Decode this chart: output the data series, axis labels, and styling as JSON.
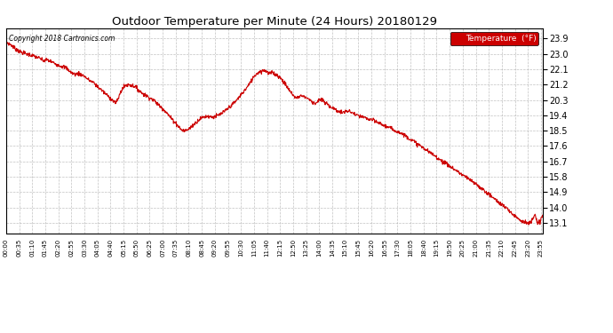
{
  "title": "Outdoor Temperature per Minute (24 Hours) 20180129",
  "copyright_text": "Copyright 2018 Cartronics.com",
  "legend_label": "Temperature  (°F)",
  "line_color": "#cc0000",
  "background_color": "#ffffff",
  "grid_color": "#999999",
  "legend_bg": "#cc0000",
  "legend_text_color": "#ffffff",
  "ylim_min": 12.5,
  "ylim_max": 24.5,
  "yticks": [
    13.1,
    14.0,
    14.9,
    15.8,
    16.7,
    17.6,
    18.5,
    19.4,
    20.3,
    21.2,
    22.1,
    23.0,
    23.9
  ],
  "x_tick_labels": [
    "00:00",
    "00:35",
    "01:10",
    "01:45",
    "02:20",
    "02:55",
    "03:30",
    "04:05",
    "04:40",
    "05:15",
    "05:50",
    "06:25",
    "07:00",
    "07:35",
    "08:10",
    "08:45",
    "09:20",
    "09:55",
    "10:30",
    "11:05",
    "11:40",
    "12:15",
    "12:50",
    "13:25",
    "14:00",
    "14:35",
    "15:10",
    "15:45",
    "16:20",
    "16:55",
    "17:30",
    "18:05",
    "18:40",
    "19:15",
    "19:50",
    "20:25",
    "21:00",
    "21:35",
    "22:10",
    "22:45",
    "23:20",
    "23:55"
  ],
  "keypoints": [
    [
      0,
      23.7
    ],
    [
      15,
      23.5
    ],
    [
      25,
      23.3
    ],
    [
      40,
      23.1
    ],
    [
      55,
      23.0
    ],
    [
      70,
      22.9
    ],
    [
      85,
      22.8
    ],
    [
      100,
      22.6
    ],
    [
      110,
      22.65
    ],
    [
      125,
      22.5
    ],
    [
      140,
      22.35
    ],
    [
      160,
      22.2
    ],
    [
      175,
      21.9
    ],
    [
      185,
      21.8
    ],
    [
      195,
      21.85
    ],
    [
      210,
      21.7
    ],
    [
      220,
      21.5
    ],
    [
      235,
      21.3
    ],
    [
      250,
      21.0
    ],
    [
      265,
      20.7
    ],
    [
      280,
      20.4
    ],
    [
      295,
      20.1
    ],
    [
      310,
      20.9
    ],
    [
      320,
      21.15
    ],
    [
      330,
      21.2
    ],
    [
      345,
      21.1
    ],
    [
      355,
      20.9
    ],
    [
      365,
      20.7
    ],
    [
      380,
      20.5
    ],
    [
      395,
      20.3
    ],
    [
      410,
      20.0
    ],
    [
      425,
      19.7
    ],
    [
      440,
      19.3
    ],
    [
      455,
      18.95
    ],
    [
      465,
      18.7
    ],
    [
      470,
      18.55
    ],
    [
      480,
      18.5
    ],
    [
      490,
      18.6
    ],
    [
      500,
      18.8
    ],
    [
      510,
      19.0
    ],
    [
      520,
      19.2
    ],
    [
      530,
      19.3
    ],
    [
      540,
      19.35
    ],
    [
      555,
      19.3
    ],
    [
      570,
      19.4
    ],
    [
      585,
      19.6
    ],
    [
      600,
      19.9
    ],
    [
      615,
      20.2
    ],
    [
      630,
      20.6
    ],
    [
      645,
      21.0
    ],
    [
      655,
      21.3
    ],
    [
      665,
      21.7
    ],
    [
      675,
      21.9
    ],
    [
      685,
      22.0
    ],
    [
      695,
      22.05
    ],
    [
      700,
      21.95
    ],
    [
      705,
      21.85
    ],
    [
      715,
      21.9
    ],
    [
      720,
      21.85
    ],
    [
      730,
      21.7
    ],
    [
      740,
      21.5
    ],
    [
      750,
      21.2
    ],
    [
      760,
      20.85
    ],
    [
      770,
      20.6
    ],
    [
      778,
      20.4
    ],
    [
      785,
      20.5
    ],
    [
      790,
      20.55
    ],
    [
      800,
      20.5
    ],
    [
      810,
      20.4
    ],
    [
      820,
      20.2
    ],
    [
      830,
      20.1
    ],
    [
      840,
      20.3
    ],
    [
      848,
      20.3
    ],
    [
      855,
      20.15
    ],
    [
      865,
      20.0
    ],
    [
      875,
      19.85
    ],
    [
      885,
      19.7
    ],
    [
      900,
      19.55
    ],
    [
      915,
      19.65
    ],
    [
      925,
      19.6
    ],
    [
      940,
      19.4
    ],
    [
      955,
      19.3
    ],
    [
      970,
      19.2
    ],
    [
      985,
      19.1
    ],
    [
      1000,
      18.95
    ],
    [
      1015,
      18.8
    ],
    [
      1030,
      18.65
    ],
    [
      1045,
      18.5
    ],
    [
      1065,
      18.3
    ],
    [
      1085,
      18.0
    ],
    [
      1105,
      17.7
    ],
    [
      1125,
      17.4
    ],
    [
      1145,
      17.1
    ],
    [
      1165,
      16.8
    ],
    [
      1185,
      16.5
    ],
    [
      1205,
      16.2
    ],
    [
      1225,
      15.9
    ],
    [
      1245,
      15.6
    ],
    [
      1265,
      15.3
    ],
    [
      1285,
      14.95
    ],
    [
      1305,
      14.6
    ],
    [
      1325,
      14.25
    ],
    [
      1345,
      13.9
    ],
    [
      1360,
      13.6
    ],
    [
      1375,
      13.35
    ],
    [
      1390,
      13.15
    ],
    [
      1400,
      13.1
    ],
    [
      1408,
      13.1
    ],
    [
      1412,
      13.3
    ],
    [
      1416,
      13.5
    ],
    [
      1418,
      13.55
    ],
    [
      1420,
      13.5
    ],
    [
      1422,
      13.3
    ],
    [
      1424,
      13.15
    ],
    [
      1428,
      13.1
    ],
    [
      1432,
      13.1
    ],
    [
      1435,
      13.3
    ],
    [
      1438,
      13.5
    ],
    [
      1439,
      13.6
    ]
  ]
}
